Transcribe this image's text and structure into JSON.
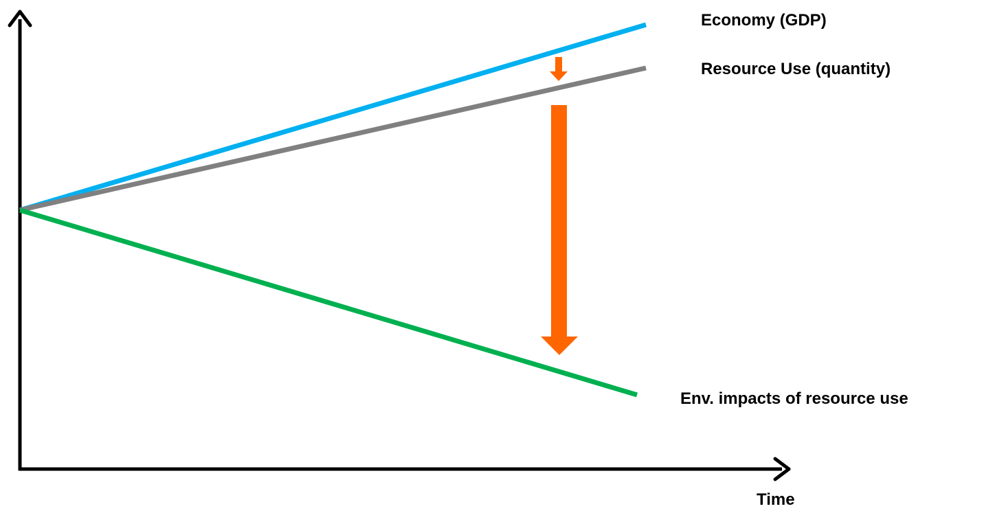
{
  "diagram": {
    "x_axis_label": "Time",
    "series": [
      {
        "id": "economy",
        "label": "Economy (GDP)",
        "color": "#00b0f0",
        "trend": "rising"
      },
      {
        "id": "resource_use",
        "label": "Resource Use (quantity)",
        "color": "#808080",
        "trend": "rising"
      },
      {
        "id": "env_impacts",
        "label": "Env. impacts of resource use",
        "color": "#00b050",
        "trend": "falling"
      }
    ],
    "arrows": [
      {
        "id": "resource-decoupling",
        "from": "economy",
        "to": "resource_use",
        "color": "#ff6600"
      },
      {
        "id": "impact-decoupling",
        "from": "resource_use",
        "to": "env_impacts",
        "color": "#ff6600"
      }
    ],
    "axis_color": "#000000"
  }
}
